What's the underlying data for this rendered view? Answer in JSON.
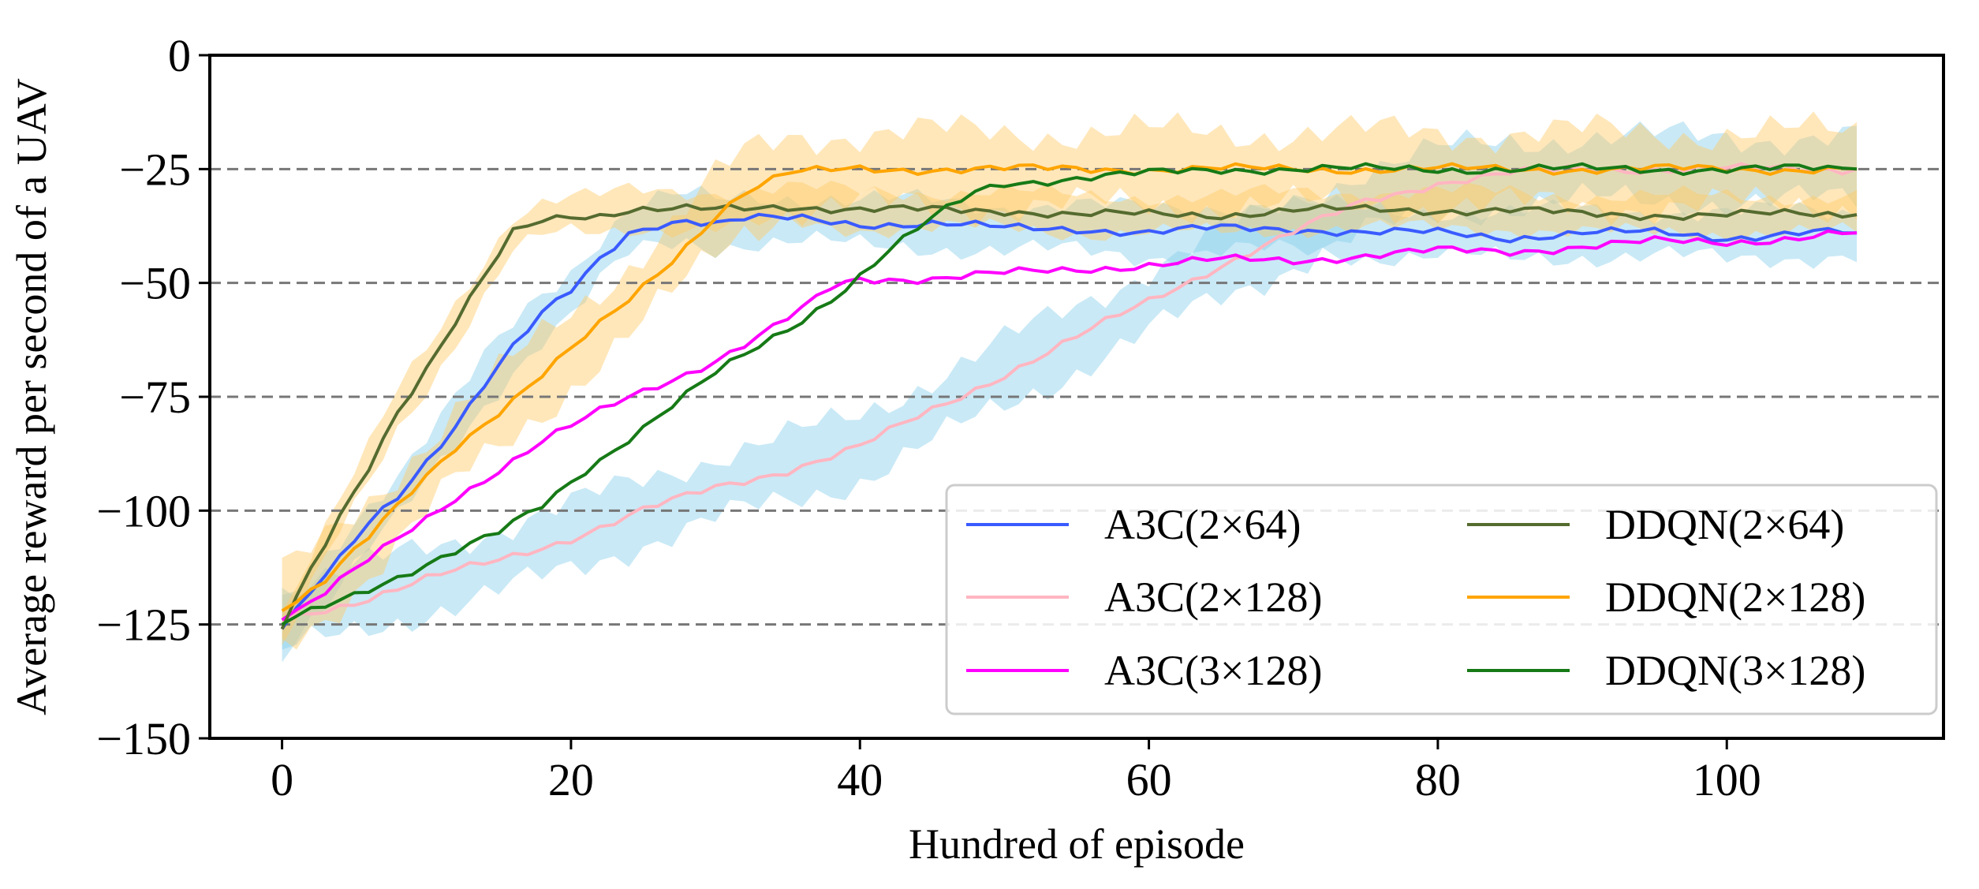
{
  "chart_data": {
    "type": "line",
    "title": "",
    "xlabel": "Hundred of episode",
    "ylabel": "Average reward per second of a UAV",
    "xlim": [
      -5,
      115
    ],
    "ylim": [
      -150,
      0
    ],
    "xticks": [
      0,
      20,
      40,
      60,
      80,
      100
    ],
    "yticks": [
      0,
      -25,
      -50,
      -75,
      -100,
      -125,
      -150
    ],
    "xtick_labels": [
      "0",
      "20",
      "40",
      "60",
      "80",
      "100"
    ],
    "ytick_labels": [
      "0",
      "−25",
      "−50",
      "−75",
      "−100",
      "−125",
      "−150"
    ],
    "hlines": [
      -25,
      -50,
      -75,
      -100,
      -125
    ],
    "legend_position": "lower-right",
    "legend_columns": 2,
    "series": [
      {
        "name": "A3C(2×64)",
        "color": "#3a5bff",
        "band_color": "#87ceeb",
        "band_width": 5,
        "x": [
          0,
          2,
          4,
          6,
          8,
          10,
          12,
          14,
          16,
          18,
          20,
          22,
          24,
          26,
          28,
          30,
          32,
          34,
          36,
          40,
          45,
          50,
          55,
          60,
          65,
          70,
          75,
          80,
          85,
          90,
          95,
          100,
          105,
          109
        ],
        "values": [
          -126,
          -118,
          -111,
          -103,
          -97,
          -89,
          -81,
          -72,
          -64,
          -57,
          -52,
          -45,
          -39,
          -37,
          -36,
          -37,
          -36,
          -36,
          -36,
          -37,
          -37,
          -38,
          -38,
          -39,
          -38,
          -38,
          -39,
          -39,
          -40,
          -39,
          -39,
          -40,
          -39,
          -39
        ]
      },
      {
        "name": "A3C(2×128)",
        "color": "#ffb6c1",
        "band_color": "#87ceeb",
        "band_width": 7,
        "x": [
          0,
          5,
          10,
          15,
          20,
          25,
          30,
          35,
          40,
          45,
          50,
          55,
          60,
          65,
          70,
          75,
          80,
          85,
          90,
          95,
          100,
          105,
          109
        ],
        "values": [
          -124,
          -120,
          -115,
          -111,
          -106,
          -100,
          -95,
          -91,
          -86,
          -78,
          -70,
          -62,
          -54,
          -46,
          -39,
          -32,
          -28,
          -26,
          -25,
          -25,
          -25,
          -25,
          -25
        ]
      },
      {
        "name": "A3C(3×128)",
        "color": "#ff00ff",
        "band_color": "#87ceeb",
        "band_width": 0,
        "x": [
          0,
          3,
          6,
          9,
          12,
          15,
          18,
          21,
          24,
          27,
          30,
          33,
          36,
          38,
          40,
          45,
          50,
          55,
          60,
          65,
          70,
          75,
          80,
          85,
          90,
          95,
          100,
          105,
          109
        ],
        "values": [
          -124,
          -118,
          -111,
          -104,
          -97,
          -91,
          -85,
          -80,
          -75,
          -71,
          -67,
          -62,
          -56,
          -51,
          -49,
          -49,
          -48,
          -47,
          -46,
          -45,
          -45,
          -44,
          -43,
          -43,
          -42,
          -41,
          -41,
          -40,
          -39
        ]
      },
      {
        "name": "DDQN(2×64)",
        "color": "#556b2f",
        "band_color": "#ffc966",
        "band_width": 4,
        "x": [
          0,
          2,
          4,
          6,
          8,
          10,
          12,
          14,
          16,
          18,
          20,
          22,
          24,
          26,
          28,
          30,
          35,
          40,
          45,
          50,
          55,
          60,
          65,
          70,
          75,
          80,
          85,
          90,
          95,
          100,
          105,
          109
        ],
        "values": [
          -126,
          -113,
          -101,
          -90,
          -78,
          -69,
          -59,
          -49,
          -39,
          -36,
          -35,
          -35,
          -34,
          -34,
          -34,
          -34,
          -33,
          -34,
          -34,
          -34,
          -35,
          -35,
          -35,
          -34,
          -34,
          -34,
          -34,
          -35,
          -35,
          -35,
          -35,
          -35
        ]
      },
      {
        "name": "DDQN(2×128)",
        "color": "#ffa500",
        "band_color": "#ffc966",
        "band_width": 8,
        "x": [
          0,
          3,
          6,
          9,
          12,
          15,
          18,
          21,
          24,
          27,
          30,
          32,
          35,
          40,
          45,
          50,
          55,
          60,
          65,
          70,
          75,
          80,
          85,
          90,
          95,
          100,
          105,
          109
        ],
        "values": [
          -122,
          -115,
          -106,
          -96,
          -86,
          -78,
          -70,
          -62,
          -54,
          -45,
          -35,
          -30,
          -26,
          -25,
          -25,
          -25,
          -25,
          -25,
          -25,
          -25,
          -25,
          -25,
          -25,
          -25,
          -25,
          -25,
          -25,
          -25
        ]
      },
      {
        "name": "DDQN(3×128)",
        "color": "#167a16",
        "band_color": "#ffc966",
        "band_width": 0,
        "x": [
          0,
          3,
          6,
          9,
          12,
          15,
          18,
          21,
          24,
          27,
          30,
          33,
          36,
          39,
          42,
          45,
          48,
          50,
          55,
          60,
          65,
          70,
          75,
          80,
          85,
          90,
          95,
          100,
          105,
          109
        ],
        "values": [
          -125,
          -121,
          -117,
          -113,
          -109,
          -105,
          -99,
          -91,
          -84,
          -77,
          -70,
          -64,
          -58,
          -51,
          -43,
          -36,
          -30,
          -28,
          -27,
          -26,
          -25,
          -25,
          -25,
          -25,
          -25,
          -25,
          -25,
          -25,
          -25,
          -25
        ]
      }
    ]
  }
}
